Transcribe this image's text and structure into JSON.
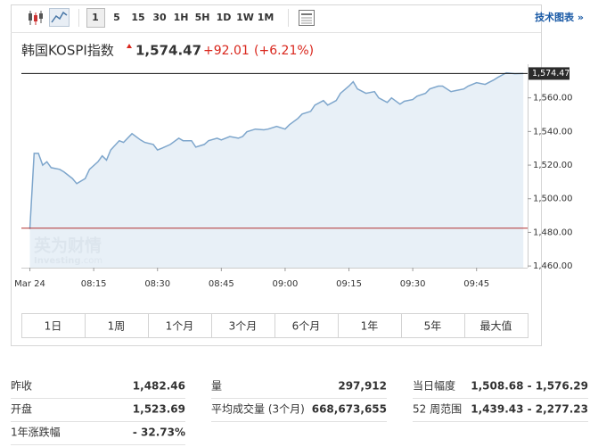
{
  "toolbar": {
    "intervals": [
      "1",
      "5",
      "15",
      "30",
      "1H",
      "5H",
      "1D",
      "1W",
      "1M"
    ],
    "link": "技术图表 »"
  },
  "header": {
    "name": "韩国KOSPI指数",
    "price": "1,574.47",
    "change": "+92.01",
    "change_pct": "(+6.21%)"
  },
  "watermark": {
    "brand": "英为财情",
    "site": "Investing",
    "site_suffix": ".com"
  },
  "chart_data": {
    "type": "area",
    "x": [
      "08:00",
      "08:01",
      "08:02",
      "08:03",
      "08:04",
      "08:05",
      "08:07",
      "08:08",
      "08:10",
      "08:11",
      "08:13",
      "08:14",
      "08:16",
      "08:17",
      "08:18",
      "08:19",
      "08:21",
      "08:22",
      "08:24",
      "08:26",
      "08:27",
      "08:29",
      "08:30",
      "08:31",
      "08:33",
      "08:35",
      "08:36",
      "08:38",
      "08:39",
      "08:41",
      "08:42",
      "08:44",
      "08:45",
      "08:47",
      "08:49",
      "08:50",
      "08:51",
      "08:53",
      "08:55",
      "08:56",
      "08:58",
      "09:00",
      "09:01",
      "09:03",
      "09:04",
      "09:06",
      "09:07",
      "09:09",
      "09:10",
      "09:12",
      "09:13",
      "09:15",
      "09:16",
      "09:17",
      "09:19",
      "09:21",
      "09:22",
      "09:24",
      "09:25",
      "09:27",
      "09:28",
      "09:30",
      "09:31",
      "09:33",
      "09:34",
      "09:36",
      "09:37",
      "09:39",
      "09:40",
      "09:42",
      "09:43",
      "09:45",
      "09:47",
      "09:49",
      "09:50",
      "09:52",
      "09:54",
      "09:56"
    ],
    "values": [
      1482,
      1527,
      1527,
      1520,
      1522,
      1518.5,
      1517.5,
      1516,
      1512,
      1509,
      1512,
      1517.5,
      1522,
      1525.5,
      1523,
      1529,
      1534.5,
      1533.5,
      1538.7,
      1535,
      1533.5,
      1532.3,
      1529,
      1530,
      1532.3,
      1536,
      1534.5,
      1534.5,
      1530.7,
      1532.3,
      1534.5,
      1536,
      1535,
      1537,
      1536,
      1537,
      1539.8,
      1541.4,
      1541,
      1541.4,
      1543,
      1541.4,
      1544,
      1547.8,
      1550.4,
      1552,
      1555.7,
      1558.4,
      1555.7,
      1558.4,
      1562.7,
      1567,
      1569.6,
      1565.3,
      1562.7,
      1563.7,
      1560,
      1557.3,
      1560,
      1556.3,
      1558,
      1559,
      1561,
      1562.7,
      1565.3,
      1567,
      1567,
      1563.7,
      1564.3,
      1565.3,
      1567,
      1569,
      1568,
      1570.6,
      1572.2,
      1574.9,
      1574.4,
      1574.47
    ],
    "color": "#7ea6cc",
    "fill": "#e4edf6",
    "xlim": [
      "07:58",
      "09:57"
    ],
    "xticks": [
      {
        "value": "08:00",
        "label": "Mar 24"
      },
      "08:15",
      "08:30",
      "08:45",
      "09:00",
      "09:15",
      "09:30",
      "09:45"
    ],
    "ylim": [
      1459,
      1580
    ],
    "yticks": [
      {
        "value": 1460,
        "label": "1,460.00"
      },
      {
        "value": 1480,
        "label": "1,480.00"
      },
      {
        "value": 1500,
        "label": "1,500.00"
      },
      {
        "value": 1520,
        "label": "1,520.00"
      },
      {
        "value": 1540,
        "label": "1,540.00"
      },
      {
        "value": 1560,
        "label": "1,560.00"
      }
    ],
    "last_price": {
      "value": 1574.47,
      "label": "1,574.47"
    },
    "previous_close": 1482.46
  },
  "ranges": [
    "1日",
    "1周",
    "1个月",
    "3个月",
    "6个月",
    "1年",
    "5年",
    "最大值"
  ],
  "stats": [
    {
      "label": "昨收",
      "value": "1,482.46"
    },
    {
      "label": "量",
      "value": "297,912"
    },
    {
      "label": "当日幅度",
      "value": "1,508.68 - 1,576.29"
    },
    {
      "label": "开盘",
      "value": "1,523.69"
    },
    {
      "label": "平均成交量 (3个月)",
      "value": "668,673,655"
    },
    {
      "label": "52 周范围",
      "value": "1,439.43 - 2,277.23"
    },
    {
      "label": "1年涨跌幅",
      "value": "- 32.73%"
    }
  ]
}
